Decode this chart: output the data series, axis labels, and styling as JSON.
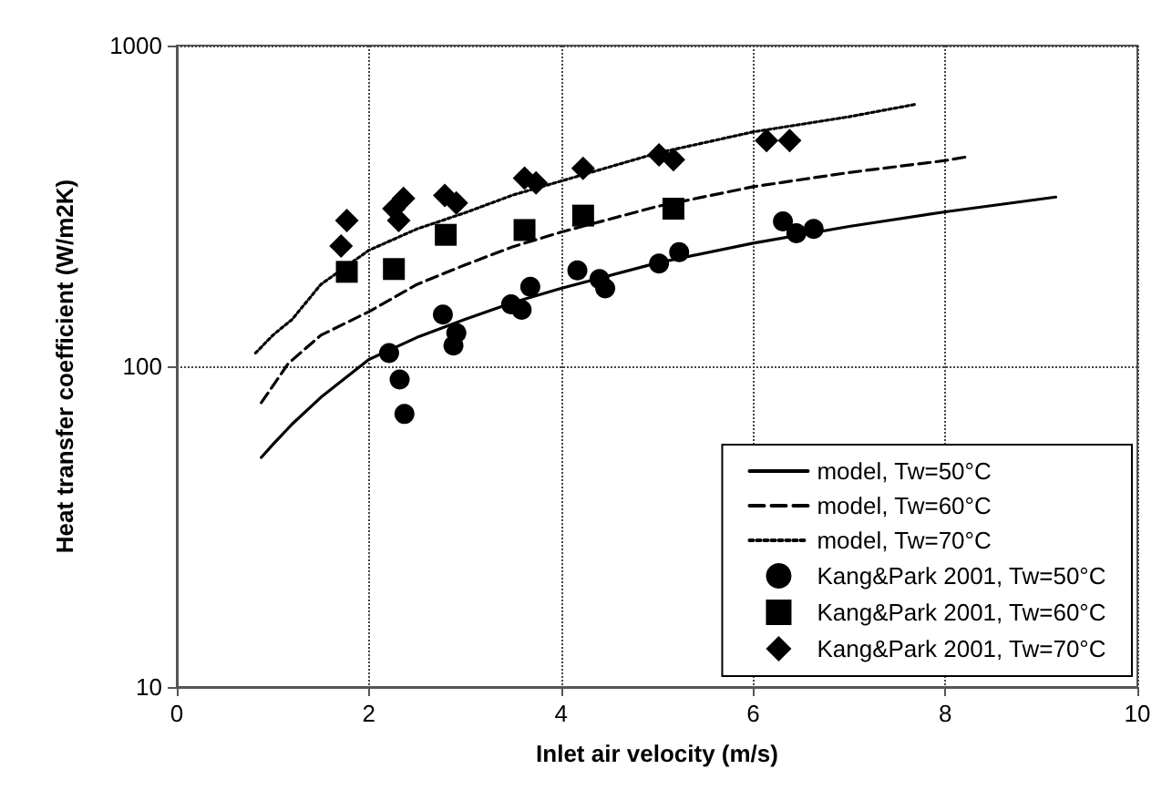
{
  "chart_data": {
    "type": "line",
    "xlabel": "Inlet air velocity (m/s)",
    "ylabel": "Heat transfer coefficient (W/m2K)",
    "xlim": [
      0,
      10
    ],
    "xticks": [
      0,
      2,
      4,
      6,
      8,
      10
    ],
    "ylim": [
      10,
      1000
    ],
    "yticks": [
      10,
      100,
      1000
    ],
    "log": true,
    "grid": true,
    "legend": "bottom right",
    "series": [
      {
        "name": "model, Tw=50°C",
        "type": "line",
        "line_style": "solid",
        "marker": "none",
        "color": "#000000",
        "x": [
          0.88,
          1.0,
          1.2,
          1.5,
          2,
          2.5,
          3,
          3.5,
          4,
          5,
          6,
          7,
          8,
          9.15
        ],
        "values": [
          52,
          57,
          66,
          80,
          105,
          123,
          140,
          158,
          175,
          210,
          242,
          273,
          303,
          337
        ]
      },
      {
        "name": "model, Tw=60°C",
        "type": "line",
        "line_style": "dashed",
        "marker": "none",
        "color": "#000000",
        "x": [
          0.88,
          1.16,
          1.5,
          2,
          2.5,
          3,
          3.5,
          4,
          5,
          6,
          7,
          8,
          8.23
        ],
        "values": [
          77,
          102,
          125,
          148,
          180,
          207,
          236,
          262,
          315,
          363,
          402,
          438,
          450
        ]
      },
      {
        "name": "model, Tw=70°C",
        "type": "line",
        "line_style": "dotted",
        "marker": "none",
        "color": "#000000",
        "x": [
          0.82,
          1.0,
          1.2,
          1.5,
          2,
          2.5,
          3,
          3.5,
          4,
          5,
          6,
          7,
          7.68
        ],
        "values": [
          110,
          125,
          140,
          180,
          230,
          268,
          301,
          342,
          378,
          462,
          538,
          600,
          655
        ]
      },
      {
        "name": "Kang&Park 2001, Tw=50°C",
        "type": "scatter",
        "marker": "circle",
        "color": "#000000",
        "x": [
          2.21,
          2.32,
          2.37,
          2.77,
          2.91,
          2.88,
          3.48,
          3.59,
          3.68,
          4.17,
          4.4,
          4.46,
          5.02,
          5.23,
          6.31,
          6.45,
          6.63
        ],
        "values": [
          110,
          91,
          71,
          145,
          127,
          116,
          156,
          150,
          177,
          199,
          187,
          175,
          209,
          227,
          283,
          260,
          268
        ]
      },
      {
        "name": "Kang&Park 2001, Tw=60°C",
        "type": "scatter",
        "marker": "square",
        "color": "#000000",
        "x": [
          1.77,
          2.26,
          2.8,
          3.62,
          4.23,
          5.17
        ],
        "values": [
          197,
          201,
          257,
          266,
          295,
          310
        ]
      },
      {
        "name": "Kang&Park 2001, Tw=70°C",
        "type": "scatter",
        "marker": "diamond",
        "color": "#000000",
        "x": [
          1.71,
          1.77,
          2.26,
          2.36,
          2.31,
          2.79,
          2.91,
          3.62,
          3.74,
          4.23,
          5.02,
          5.17,
          6.14,
          6.38
        ],
        "values": [
          237,
          285,
          310,
          334,
          285,
          341,
          323,
          386,
          373,
          414,
          456,
          441,
          506,
          506
        ]
      }
    ]
  }
}
